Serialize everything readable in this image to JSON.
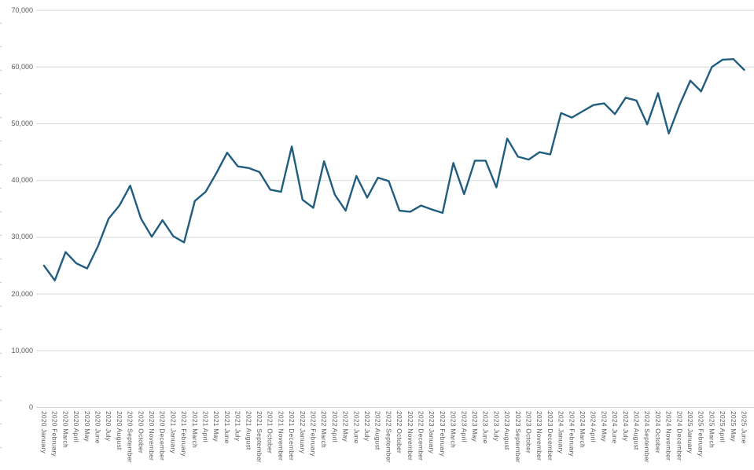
{
  "chart_data": {
    "type": "line",
    "title": "",
    "xlabel": "",
    "ylabel": "",
    "legend": "none",
    "grid": "horizontal",
    "ylim": [
      0,
      70000
    ],
    "y_tick_step": 10000,
    "y_tick_labels": [
      "0",
      "10,000",
      "20,000",
      "30,000",
      "40,000",
      "50,000",
      "60,000",
      "70,000"
    ],
    "categories": [
      "2020 January",
      "2020 February",
      "2020 March",
      "2020 April",
      "2020 May",
      "2020 June",
      "2020 July",
      "2020 August",
      "2020 September",
      "2020 October",
      "2020 November",
      "2020 December",
      "2021 January",
      "2021 February",
      "2021 March",
      "2021 April",
      "2021 May",
      "2021 June",
      "2021 July",
      "2021 August",
      "2021 September",
      "2021 October",
      "2021 November",
      "2021 December",
      "2022 January",
      "2022 February",
      "2022 March",
      "2022 April",
      "2022 May",
      "2022 June",
      "2022 July",
      "2022 August",
      "2022 September",
      "2022 October",
      "2022 November",
      "2022 December",
      "2023 January",
      "2023 February",
      "2023 March",
      "2023 April",
      "2023 May",
      "2023 June",
      "2023 July",
      "2023 August",
      "2023 September",
      "2023 October",
      "2023 November",
      "2023 December",
      "2024 January",
      "2024 February",
      "2024 March",
      "2024 April",
      "2024 May",
      "2024 June",
      "2024 July",
      "2024 August",
      "2024 September",
      "2024 October",
      "2024 November",
      "2024 December",
      "2025 January",
      "2025 February",
      "2025 March",
      "2025 April",
      "2025 May",
      "2025 June"
    ],
    "values": [
      25000,
      22400,
      27400,
      25400,
      24500,
      28400,
      33300,
      35600,
      39100,
      33300,
      30100,
      33000,
      30200,
      29100,
      36400,
      38000,
      41300,
      44900,
      42500,
      42200,
      41500,
      38400,
      38000,
      46000,
      36600,
      35200,
      43400,
      37500,
      34700,
      40800,
      37000,
      40500,
      39900,
      34700,
      34500,
      35600,
      34900,
      34300,
      43100,
      37600,
      43500,
      43500,
      38800,
      47400,
      44200,
      43700,
      45000,
      44600,
      51900,
      51100,
      52200,
      53300,
      53600,
      51700,
      54600,
      54100,
      49900,
      55400,
      48300,
      53300,
      57600,
      55700,
      60000,
      61300,
      61400,
      59500
    ],
    "series_name": "",
    "line_color": "#205D7F",
    "gridline_color": "#D9D9D9",
    "label_color": "#595959"
  }
}
